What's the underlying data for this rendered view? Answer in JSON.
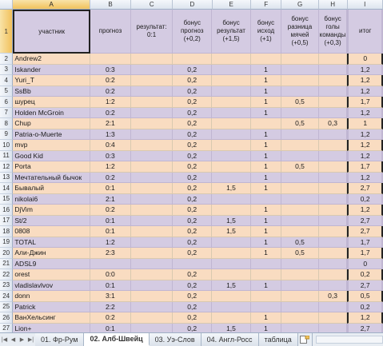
{
  "columns": [
    "A",
    "B",
    "C",
    "D",
    "E",
    "F",
    "G",
    "H",
    "I"
  ],
  "header_row_number": "1",
  "headers": {
    "a": "участник",
    "b": "прогноз",
    "c": "результат: 0:1",
    "d": "бонус прогноз (+0,2)",
    "e": "бонус результат (+1,5)",
    "f": "бонус исход (+1)",
    "g": "бонус разница мячей (+0,5)",
    "h": "бонус голы команды (+0,3)",
    "i": "итог"
  },
  "rows": [
    {
      "n": "2",
      "name": "Andrew2",
      "b": "",
      "d": "",
      "e": "",
      "f": "",
      "g": "",
      "h": "",
      "i": "0"
    },
    {
      "n": "3",
      "name": "Iskander",
      "b": "0:3",
      "d": "0,2",
      "e": "",
      "f": "1",
      "g": "",
      "h": "",
      "i": "1,2"
    },
    {
      "n": "4",
      "name": "Yuri_T",
      "b": "0:2",
      "d": "0,2",
      "e": "",
      "f": "1",
      "g": "",
      "h": "",
      "i": "1,2"
    },
    {
      "n": "5",
      "name": "SsBb",
      "b": "0:2",
      "d": "0,2",
      "e": "",
      "f": "1",
      "g": "",
      "h": "",
      "i": "1,2"
    },
    {
      "n": "6",
      "name": "шурец",
      "b": "1:2",
      "d": "0,2",
      "e": "",
      "f": "1",
      "g": "0,5",
      "h": "",
      "i": "1,7"
    },
    {
      "n": "7",
      "name": "Holden McGroin",
      "b": "0:2",
      "d": "0,2",
      "e": "",
      "f": "1",
      "g": "",
      "h": "",
      "i": "1,2"
    },
    {
      "n": "8",
      "name": "Chup",
      "b": "2:1",
      "d": "0,2",
      "e": "",
      "f": "",
      "g": "0,5",
      "h": "0,3",
      "i": "1"
    },
    {
      "n": "9",
      "name": "Patria-o-Muerte",
      "b": "1:3",
      "d": "0,2",
      "e": "",
      "f": "1",
      "g": "",
      "h": "",
      "i": "1,2"
    },
    {
      "n": "10",
      "name": "mvp",
      "b": "0:4",
      "d": "0,2",
      "e": "",
      "f": "1",
      "g": "",
      "h": "",
      "i": "1,2"
    },
    {
      "n": "11",
      "name": "Good Kid",
      "b": "0:3",
      "d": "0,2",
      "e": "",
      "f": "1",
      "g": "",
      "h": "",
      "i": "1,2"
    },
    {
      "n": "12",
      "name": "Porta",
      "b": "1:2",
      "d": "0,2",
      "e": "",
      "f": "1",
      "g": "0,5",
      "h": "",
      "i": "1,7"
    },
    {
      "n": "13",
      "name": "Мечтательный бычок",
      "b": "0:2",
      "d": "0,2",
      "e": "",
      "f": "1",
      "g": "",
      "h": "",
      "i": "1,2"
    },
    {
      "n": "14",
      "name": "Бывалый",
      "b": "0:1",
      "d": "0,2",
      "e": "1,5",
      "f": "1",
      "g": "",
      "h": "",
      "i": "2,7"
    },
    {
      "n": "15",
      "name": "nikolai6",
      "b": "2:1",
      "d": "0,2",
      "e": "",
      "f": "",
      "g": "",
      "h": "",
      "i": "0,2"
    },
    {
      "n": "16",
      "name": "DjVim",
      "b": "0:2",
      "d": "0,2",
      "e": "",
      "f": "1",
      "g": "",
      "h": "",
      "i": "1,2"
    },
    {
      "n": "17",
      "name": "St/2",
      "b": "0:1",
      "d": "0,2",
      "e": "1,5",
      "f": "1",
      "g": "",
      "h": "",
      "i": "2,7"
    },
    {
      "n": "18",
      "name": "0808",
      "b": "0:1",
      "d": "0,2",
      "e": "1,5",
      "f": "1",
      "g": "",
      "h": "",
      "i": "2,7"
    },
    {
      "n": "19",
      "name": "TOTAL",
      "b": "1:2",
      "d": "0,2",
      "e": "",
      "f": "1",
      "g": "0,5",
      "h": "",
      "i": "1,7"
    },
    {
      "n": "20",
      "name": "Али-Джин",
      "b": "2:3",
      "d": "0,2",
      "e": "",
      "f": "1",
      "g": "0,5",
      "h": "",
      "i": "1,7"
    },
    {
      "n": "21",
      "name": "ADSL9",
      "b": "",
      "d": "",
      "e": "",
      "f": "",
      "g": "",
      "h": "",
      "i": "0"
    },
    {
      "n": "22",
      "name": "orest",
      "b": "0:0",
      "d": "0,2",
      "e": "",
      "f": "",
      "g": "",
      "h": "",
      "i": "0,2"
    },
    {
      "n": "23",
      "name": "vladislavlvov",
      "b": "0:1",
      "d": "0,2",
      "e": "1,5",
      "f": "1",
      "g": "",
      "h": "",
      "i": "2,7"
    },
    {
      "n": "24",
      "name": "donn",
      "b": "3:1",
      "d": "0,2",
      "e": "",
      "f": "",
      "g": "",
      "h": "0,3",
      "i": "0,5"
    },
    {
      "n": "25",
      "name": "Patrick",
      "b": "2:2",
      "d": "0,2",
      "e": "",
      "f": "",
      "g": "",
      "h": "",
      "i": "0,2"
    },
    {
      "n": "26",
      "name": "ВанХельсинг",
      "b": "0:2",
      "d": "0,2",
      "e": "",
      "f": "1",
      "g": "",
      "h": "",
      "i": "1,2"
    },
    {
      "n": "27",
      "name": "Lion+",
      "b": "0:1",
      "d": "0,2",
      "e": "1,5",
      "f": "1",
      "g": "",
      "h": "",
      "i": "2,7"
    }
  ],
  "tabs": [
    "01. Фр-Рум",
    "02. Алб-Швейц",
    "03. Уэ-Слов",
    "04. Англ-Росс",
    "таблица"
  ],
  "active_tab_index": 1,
  "icons": {
    "nav_first": "nav-first-icon",
    "nav_prev": "nav-prev-icon",
    "nav_next": "nav-next-icon",
    "nav_last": "nav-last-icon",
    "new_sheet": "new-sheet-icon"
  },
  "colors": {
    "row_even": "#f9dcc1",
    "row_odd": "#d4cbe2",
    "header_selected": "#f1c15c"
  }
}
